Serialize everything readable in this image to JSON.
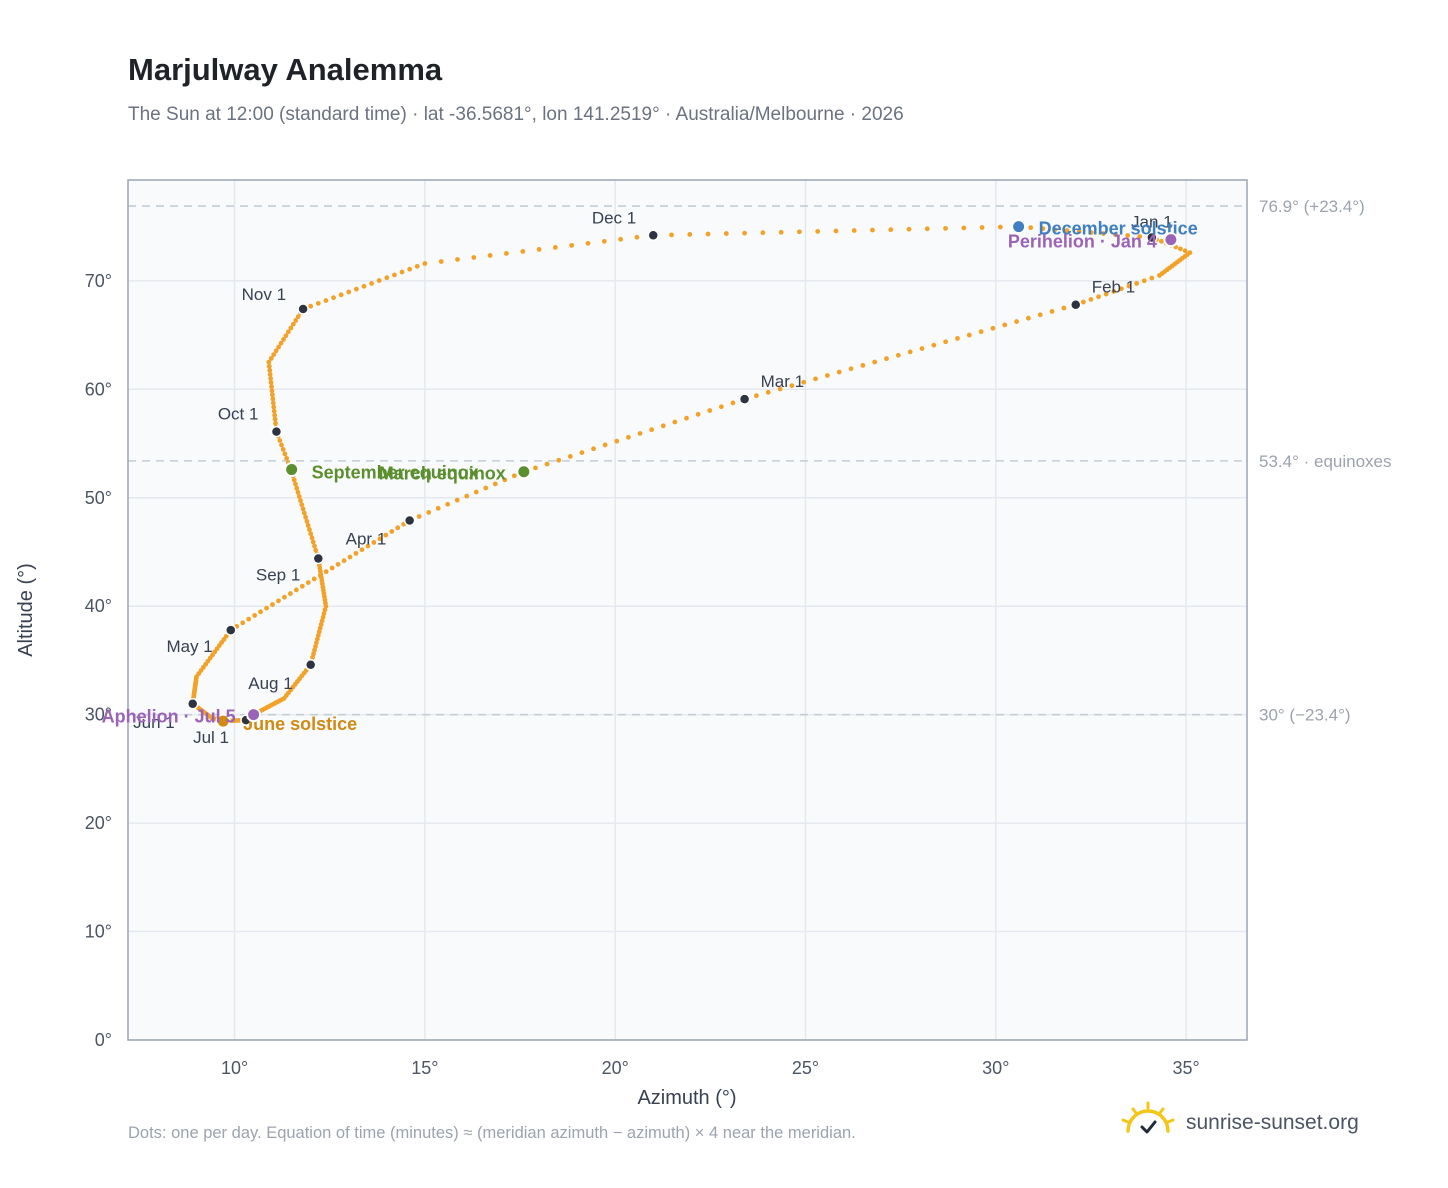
{
  "header": {
    "title": "Marjulway Analemma",
    "subtitle": "The Sun at 12:00 (standard time) · lat -36.5681°, lon 141.2519° · Australia/Melbourne · 2026"
  },
  "footnote": "Dots: one per day. Equation of time (minutes) ≈ (meridian azimuth − azimuth) × 4 near the meridian.",
  "brand": {
    "name": "sunrise-sunset.org",
    "icon": "sun-check-icon",
    "color": "#f5c518"
  },
  "colors": {
    "curve": "#f2a228",
    "month_marker": "#2d3340",
    "equinox": "#5b8f2e",
    "december_solstice": "#3f7ec0",
    "june_solstice": "#d18a12",
    "perihelion_aphelion": "#9a63b5",
    "plot_background": "#f8fafc",
    "grid": "#e5e9ef",
    "reference_line": "#c4ccd6"
  },
  "chart_data": {
    "type": "scatter",
    "title": "Marjulway Analemma",
    "xlabel": "Azimuth (°)",
    "ylabel": "Altitude (°)",
    "xlim": [
      7.2,
      36.6
    ],
    "ylim": [
      0,
      79.3
    ],
    "x_ticks": [
      {
        "value": 10,
        "label": "10°"
      },
      {
        "value": 15,
        "label": "15°"
      },
      {
        "value": 20,
        "label": "20°"
      },
      {
        "value": 25,
        "label": "25°"
      },
      {
        "value": 30,
        "label": "30°"
      },
      {
        "value": 35,
        "label": "35°"
      }
    ],
    "y_ticks": [
      {
        "value": 0,
        "label": "0°"
      },
      {
        "value": 10,
        "label": "10°"
      },
      {
        "value": 20,
        "label": "20°"
      },
      {
        "value": 30,
        "label": "30°"
      },
      {
        "value": 40,
        "label": "40°"
      },
      {
        "value": 50,
        "label": "50°"
      },
      {
        "value": 60,
        "label": "60°"
      },
      {
        "value": 70,
        "label": "70°"
      }
    ],
    "grid": true,
    "reference_lines": [
      {
        "y": 76.9,
        "label": "76.9° (+23.4°)"
      },
      {
        "y": 53.4,
        "label": "53.4° · equinoxes"
      },
      {
        "y": 30,
        "label": "30° (−23.4°)"
      }
    ],
    "analemma_path": [
      {
        "day": 0,
        "az": 34.1,
        "alt": 74.0
      },
      {
        "day": 8,
        "az": 35.1,
        "alt": 72.6
      },
      {
        "day": 20,
        "az": 34.3,
        "alt": 70.5
      },
      {
        "day": 31,
        "az": 32.1,
        "alt": 67.8
      },
      {
        "day": 59,
        "az": 23.4,
        "alt": 59.1
      },
      {
        "day": 78,
        "az": 17.6,
        "alt": 52.4
      },
      {
        "day": 90,
        "az": 14.6,
        "alt": 47.9
      },
      {
        "day": 120,
        "az": 9.9,
        "alt": 37.8
      },
      {
        "day": 135,
        "az": 9.0,
        "alt": 33.5
      },
      {
        "day": 151,
        "az": 8.9,
        "alt": 31.0
      },
      {
        "day": 161,
        "az": 9.4,
        "alt": 29.7
      },
      {
        "day": 171,
        "az": 9.7,
        "alt": 29.4
      },
      {
        "day": 181,
        "az": 10.3,
        "alt": 29.5
      },
      {
        "day": 186,
        "az": 10.5,
        "alt": 30.0
      },
      {
        "day": 200,
        "az": 11.3,
        "alt": 31.5
      },
      {
        "day": 212,
        "az": 12.0,
        "alt": 34.6
      },
      {
        "day": 228,
        "az": 12.4,
        "alt": 40.0
      },
      {
        "day": 243,
        "az": 12.2,
        "alt": 44.4
      },
      {
        "day": 264,
        "az": 11.5,
        "alt": 52.4
      },
      {
        "day": 273,
        "az": 11.1,
        "alt": 56.1
      },
      {
        "day": 290,
        "az": 10.9,
        "alt": 62.5
      },
      {
        "day": 304,
        "az": 11.8,
        "alt": 67.4
      },
      {
        "day": 320,
        "az": 15.0,
        "alt": 71.6
      },
      {
        "day": 334,
        "az": 21.0,
        "alt": 74.2
      },
      {
        "day": 354,
        "az": 30.6,
        "alt": 75.0
      },
      {
        "day": 365,
        "az": 34.1,
        "alt": 74.0
      }
    ],
    "month_markers": [
      {
        "label": "Jan 1",
        "az": 34.1,
        "alt": 74.0
      },
      {
        "label": "Feb 1",
        "az": 32.1,
        "alt": 67.8
      },
      {
        "label": "Mar 1",
        "az": 23.4,
        "alt": 59.1
      },
      {
        "label": "Apr 1",
        "az": 14.6,
        "alt": 47.9
      },
      {
        "label": "May 1",
        "az": 9.9,
        "alt": 37.8
      },
      {
        "label": "Jun 1",
        "az": 8.9,
        "alt": 31.0
      },
      {
        "label": "Jul 1",
        "az": 10.3,
        "alt": 29.5
      },
      {
        "label": "Aug 1",
        "az": 12.0,
        "alt": 34.6
      },
      {
        "label": "Sep 1",
        "az": 12.2,
        "alt": 44.4
      },
      {
        "label": "Oct 1",
        "az": 11.1,
        "alt": 56.1
      },
      {
        "label": "Nov 1",
        "az": 11.8,
        "alt": 67.4
      },
      {
        "label": "Dec 1",
        "az": 21.0,
        "alt": 74.2
      }
    ],
    "events": [
      {
        "label": "December solstice",
        "az": 30.6,
        "alt": 75.0,
        "kind": "december_solstice"
      },
      {
        "label": "Perihelion · Jan 4",
        "az": 34.6,
        "alt": 73.8,
        "kind": "perihelion_aphelion"
      },
      {
        "label": "March equinox",
        "az": 17.6,
        "alt": 52.4,
        "kind": "equinox"
      },
      {
        "label": "September equinox",
        "az": 11.5,
        "alt": 52.6,
        "kind": "equinox"
      },
      {
        "label": "June solstice",
        "az": 9.7,
        "alt": 29.4,
        "kind": "june_solstice"
      },
      {
        "label": "Aphelion · Jul 5",
        "az": 10.5,
        "alt": 30.0,
        "kind": "perihelion_aphelion"
      }
    ]
  }
}
